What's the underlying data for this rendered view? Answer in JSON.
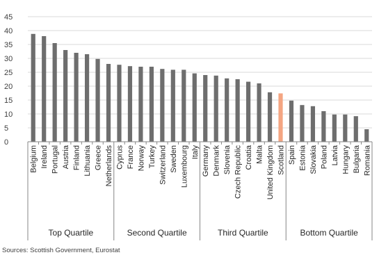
{
  "chart_data": {
    "type": "bar",
    "ylim": [
      0,
      45
    ],
    "yticks": [
      0,
      5,
      10,
      15,
      20,
      25,
      30,
      35,
      40,
      45
    ],
    "grid": true,
    "bar_color": "#6e6e6e",
    "highlight_color": "#f4a582",
    "highlight_category": "Scotland",
    "categories": [
      "Belgium",
      "Ireland",
      "Portugal",
      "Austria",
      "Finland",
      "Lithuania",
      "Greece",
      "Netherlands",
      "Cyprus",
      "France",
      "Norway",
      "Turkey",
      "Switzerland",
      "Sweden",
      "Luxembourg",
      "Italy",
      "Germany",
      "Denmark",
      "Slovenia",
      "Czech Republic",
      "Croatia",
      "Malta",
      "United Kingdom",
      "Scotland",
      "Spain",
      "Estonia",
      "Slovakia",
      "Poland",
      "Latvia",
      "Hungary",
      "Bulgaria",
      "Romania"
    ],
    "values": [
      38.8,
      38.0,
      35.5,
      33.0,
      32.0,
      31.5,
      29.8,
      28.0,
      27.7,
      27.2,
      27.0,
      27.0,
      26.2,
      25.9,
      25.9,
      24.6,
      24.0,
      23.8,
      22.8,
      22.5,
      21.6,
      21.0,
      17.8,
      17.4,
      14.8,
      13.2,
      12.8,
      11.0,
      9.8,
      9.8,
      9.2,
      4.5
    ],
    "groups": [
      {
        "label": "Top Quartile",
        "start": 0,
        "end": 7
      },
      {
        "label": "Second Quartile",
        "start": 8,
        "end": 15
      },
      {
        "label": "Third Quartile",
        "start": 16,
        "end": 23
      },
      {
        "label": "Bottom Quartile",
        "start": 24,
        "end": 31
      }
    ]
  },
  "source_text": "Sources: Scottish Government, Eurostat"
}
